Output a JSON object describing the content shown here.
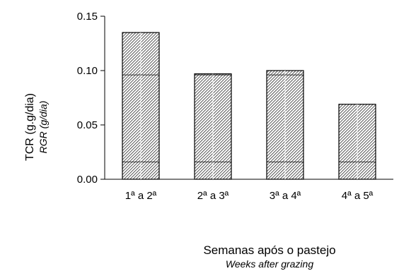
{
  "chart_data": {
    "type": "bar",
    "categories": [
      "1ª a 2ª",
      "2ª a 3ª",
      "3ª a 4ª",
      "4ª a 5ª"
    ],
    "values": [
      0.135,
      0.097,
      0.1,
      0.069
    ],
    "ylabel": "TCR (g.g/dia)",
    "ylabel_en": "RGR (g/dia)",
    "xlabel": "Semanas após o pastejo",
    "xlabel_en": "Weeks after grazing",
    "ylim": [
      0,
      0.15
    ],
    "yticks": [
      "0.00",
      "0.05",
      "0.10",
      "0.15"
    ],
    "grid": false,
    "bar_pattern": "diagonal-hatch",
    "bar_color": "#000000"
  }
}
